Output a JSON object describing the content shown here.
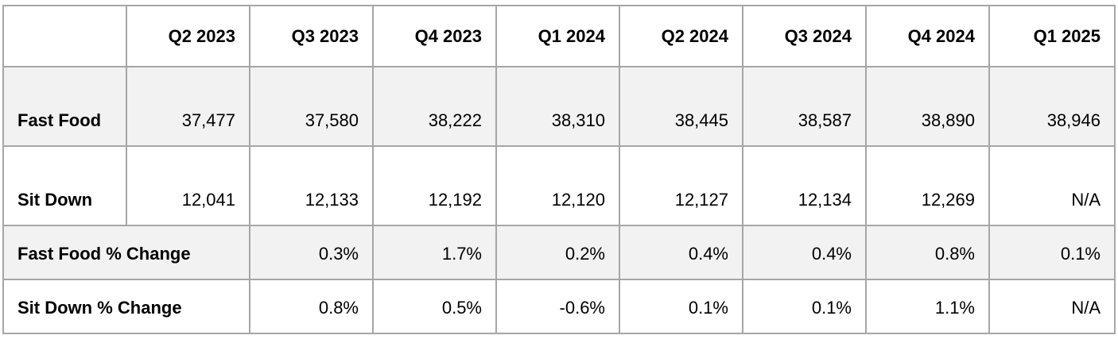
{
  "chart_data": {
    "type": "table",
    "columns": [
      "",
      "Q2 2023",
      "Q3 2023",
      "Q4 2023",
      "Q1 2024",
      "Q2 2024",
      "Q3 2024",
      "Q4 2024",
      "Q1 2025"
    ],
    "rows": [
      {
        "label": "Fast Food",
        "cells": [
          "37,477",
          "37,580",
          "38,222",
          "38,310",
          "38,445",
          "38,587",
          "38,890",
          "38,946"
        ]
      },
      {
        "label": "Sit Down",
        "cells": [
          "12,041",
          "12,133",
          "12,192",
          "12,120",
          "12,127",
          "12,134",
          "12,269",
          "N/A"
        ]
      },
      {
        "label": "Fast Food % Change",
        "cells": [
          "0.3%",
          "1.7%",
          "0.2%",
          "0.4%",
          "0.4%",
          "0.8%",
          "0.1%"
        ]
      },
      {
        "label": "Sit Down % Change",
        "cells": [
          "0.8%",
          "0.5%",
          "-0.6%",
          "0.1%",
          "0.1%",
          "1.1%",
          "N/A"
        ]
      }
    ],
    "colors": {
      "border": "#a6a6a6",
      "shaded_row": "#f2f2f2",
      "text": "#000000"
    }
  }
}
